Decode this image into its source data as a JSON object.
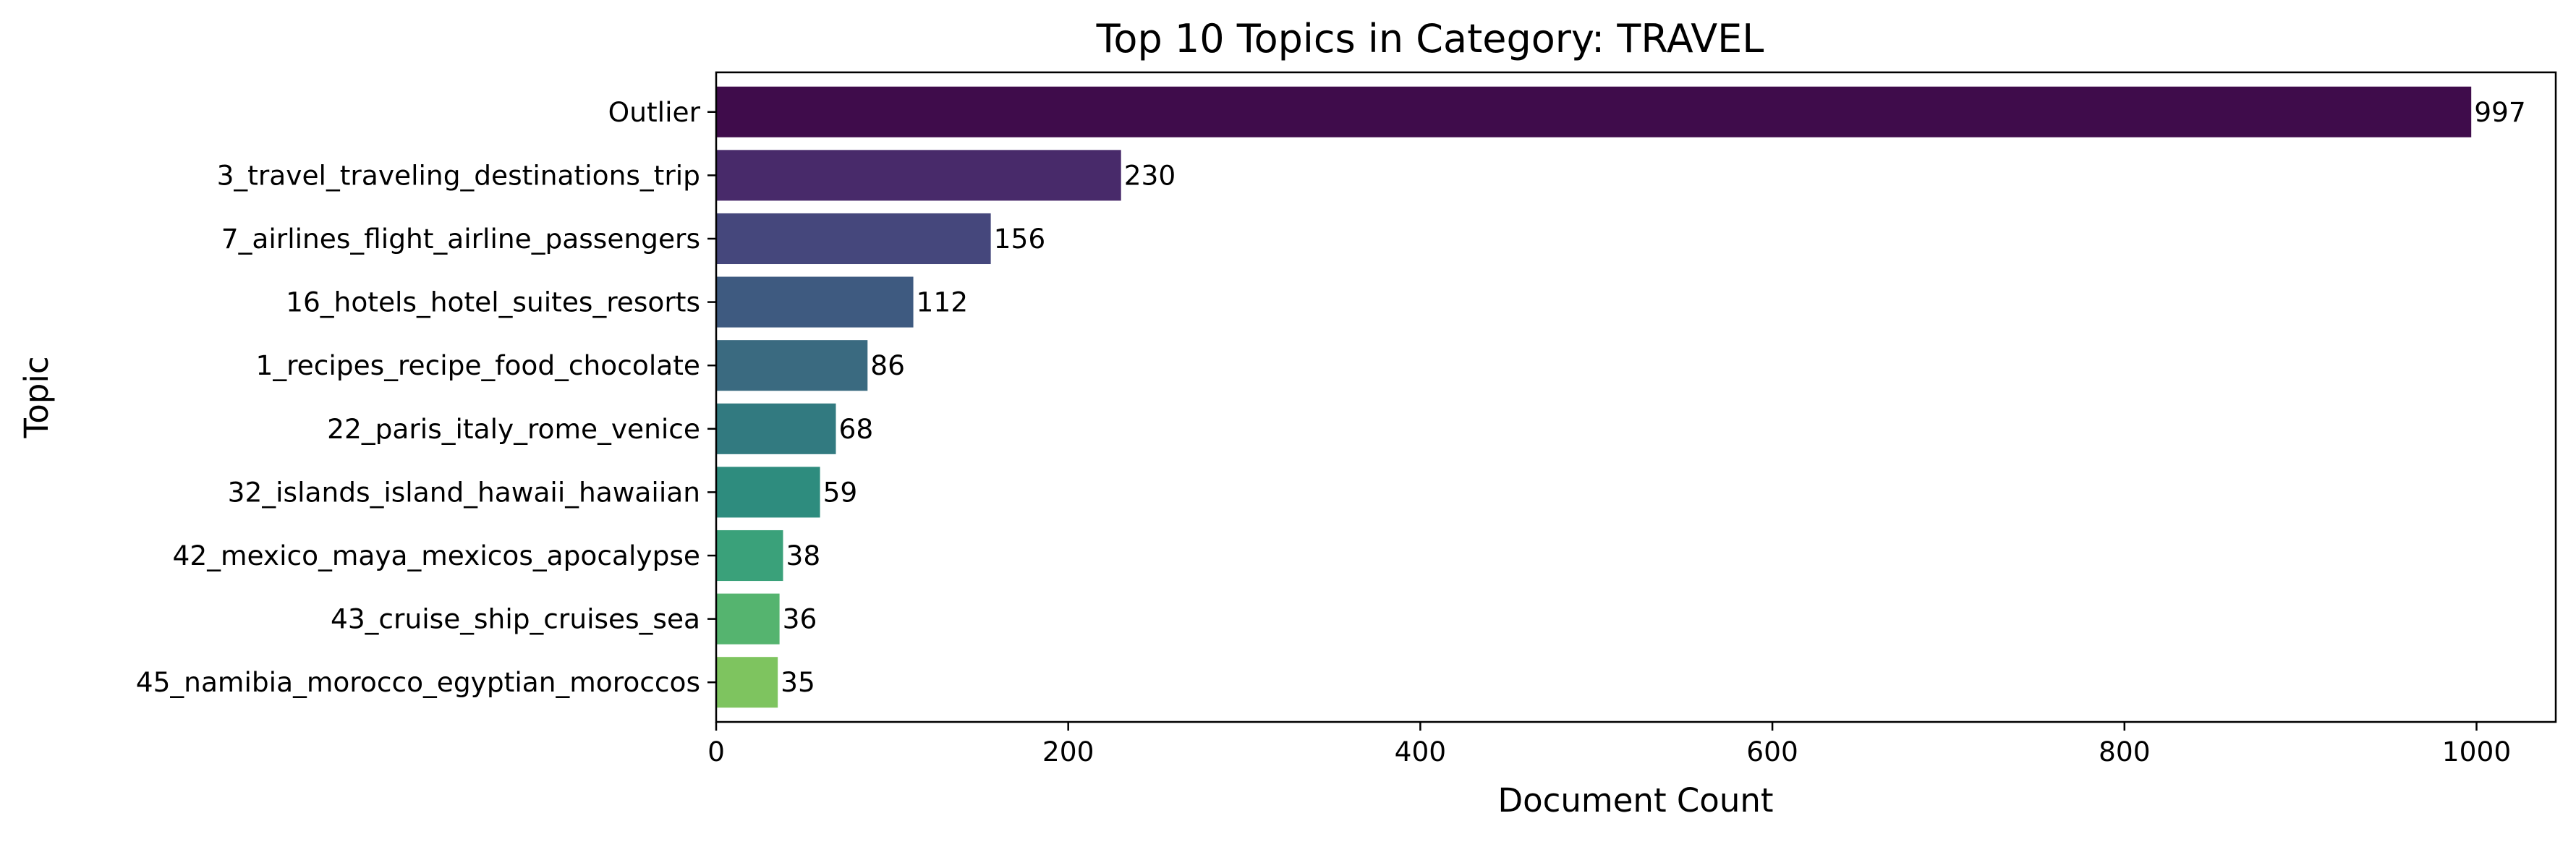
{
  "chart_data": {
    "type": "bar",
    "orientation": "horizontal",
    "title": "Top 10 Topics in Category: TRAVEL",
    "xlabel": "Document Count",
    "ylabel": "Topic",
    "categories": [
      "Outlier",
      "3_travel_traveling_destinations_trip",
      "7_airlines_flight_airline_passengers",
      "16_hotels_hotel_suites_resorts",
      "1_recipes_recipe_food_chocolate",
      "22_paris_italy_rome_venice",
      "32_islands_island_hawaii_hawaiian",
      "42_mexico_maya_mexicos_apocalypse",
      "43_cruise_ship_cruises_sea",
      "45_namibia_morocco_egyptian_moroccos"
    ],
    "values": [
      997,
      230,
      156,
      112,
      86,
      68,
      59,
      38,
      36,
      35
    ],
    "data_labels": [
      "997",
      "230",
      "156",
      "112",
      "86",
      "68",
      "59",
      "38",
      "36",
      "35"
    ],
    "colors": [
      "#440154",
      "#482878",
      "#3e4989",
      "#31688e",
      "#26828e",
      "#1f9e89",
      "#35b779",
      "#6ece58",
      "#b5de2b",
      "#fde725"
    ],
    "bar_colors_observed": [
      "#3f0c4b",
      "#482a6a",
      "#45477c",
      "#3e5a80",
      "#3a6a80",
      "#327a80",
      "#2e8c7e",
      "#3aa17a",
      "#55b46f",
      "#7ec45f"
    ],
    "xlim": [
      0,
      1045
    ],
    "xticks": [
      0,
      200,
      400,
      600,
      800,
      1000
    ],
    "xtick_labels": [
      "0",
      "200",
      "400",
      "600",
      "800",
      "1000"
    ],
    "grid": false,
    "legend": "none"
  }
}
